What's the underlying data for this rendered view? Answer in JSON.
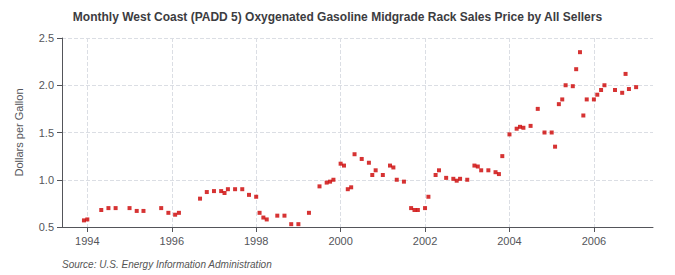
{
  "chart_data": {
    "type": "scatter",
    "title": "Monthly West Coast (PADD 5) Oxygenated Gasoline Midgrade Rack Sales Price by All Sellers",
    "ylabel": "Dollars per Gallon",
    "source": "Source: U.S. Energy Information Administration",
    "color": "#cc0000",
    "marker": "square",
    "grid": true,
    "xlim": [
      1993.4,
      2007.4
    ],
    "xticks": [
      1994,
      1996,
      1998,
      2000,
      2002,
      2004,
      2006
    ],
    "ylim": [
      0.5,
      2.5
    ],
    "yticks": [
      0.5,
      {
        "value": 1.0,
        "label": "1.0"
      },
      1.5,
      {
        "value": 2.0,
        "label": "2.0"
      },
      2.5
    ],
    "x": [
      1993.92,
      1994.0,
      1994.33,
      1994.5,
      1994.67,
      1995.0,
      1995.17,
      1995.33,
      1995.75,
      1995.92,
      1996.08,
      1996.17,
      1996.67,
      1996.83,
      1997.0,
      1997.17,
      1997.25,
      1997.33,
      1997.5,
      1997.67,
      1997.83,
      1998.0,
      1998.08,
      1998.17,
      1998.25,
      1998.5,
      1998.67,
      1998.83,
      1999.0,
      1999.25,
      1999.5,
      1999.67,
      1999.75,
      1999.83,
      2000.0,
      2000.08,
      2000.17,
      2000.25,
      2000.33,
      2000.5,
      2000.67,
      2000.75,
      2000.83,
      2001.0,
      2001.17,
      2001.25,
      2001.33,
      2001.5,
      2001.67,
      2001.75,
      2001.83,
      2002.0,
      2002.08,
      2002.25,
      2002.33,
      2002.5,
      2002.67,
      2002.75,
      2002.83,
      2003.0,
      2003.17,
      2003.25,
      2003.33,
      2003.5,
      2003.67,
      2003.75,
      2003.83,
      2004.0,
      2004.17,
      2004.25,
      2004.33,
      2004.5,
      2004.67,
      2004.83,
      2005.0,
      2005.08,
      2005.17,
      2005.25,
      2005.33,
      2005.5,
      2005.58,
      2005.67,
      2005.75,
      2005.83,
      2006.0,
      2006.08,
      2006.17,
      2006.25,
      2006.5,
      2006.67,
      2006.75,
      2006.83,
      2007.0
    ],
    "values": [
      0.57,
      0.58,
      0.68,
      0.7,
      0.7,
      0.7,
      0.67,
      0.67,
      0.7,
      0.65,
      0.63,
      0.65,
      0.8,
      0.87,
      0.88,
      0.88,
      0.86,
      0.9,
      0.9,
      0.9,
      0.84,
      0.82,
      0.65,
      0.6,
      0.58,
      0.62,
      0.62,
      0.53,
      0.53,
      0.65,
      0.93,
      0.97,
      0.98,
      1.0,
      1.17,
      1.15,
      0.9,
      0.92,
      1.27,
      1.22,
      1.18,
      1.05,
      1.1,
      1.05,
      1.15,
      1.13,
      1.0,
      0.98,
      0.7,
      0.68,
      0.68,
      0.7,
      0.82,
      1.05,
      1.1,
      1.02,
      1.01,
      0.99,
      1.01,
      1.0,
      1.15,
      1.14,
      1.1,
      1.1,
      1.08,
      1.06,
      1.25,
      1.48,
      1.54,
      1.56,
      1.55,
      1.57,
      1.75,
      1.5,
      1.5,
      1.35,
      1.8,
      1.85,
      2.0,
      1.99,
      2.17,
      2.35,
      1.68,
      1.85,
      1.85,
      1.9,
      1.95,
      2.0,
      1.95,
      1.92,
      2.12,
      1.96,
      1.98
    ]
  }
}
